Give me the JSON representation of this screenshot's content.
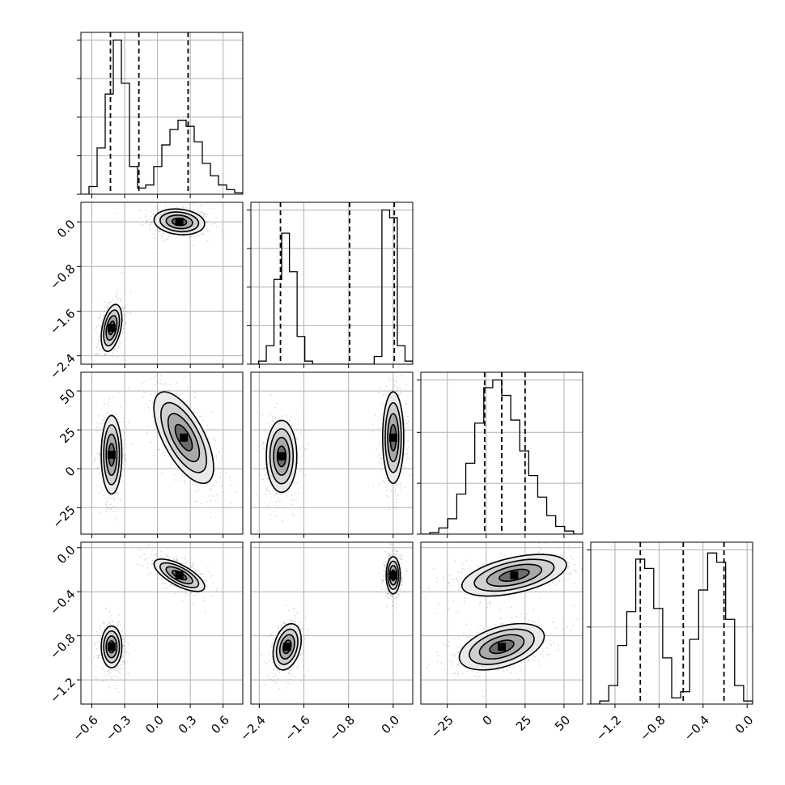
{
  "chart_data": {
    "type": "corner",
    "parameters": [
      {
        "index": 0,
        "range": [
          -0.7,
          0.78
        ],
        "ticks": [
          -0.6,
          -0.3,
          0.0,
          0.3,
          0.6
        ],
        "tick_labels": [
          "−0.6",
          "−0.3",
          "0.0",
          "0.3",
          "0.6"
        ]
      },
      {
        "index": 1,
        "range": [
          -2.55,
          0.35
        ],
        "ticks": [
          -2.4,
          -1.6,
          -0.8,
          0.0
        ],
        "tick_labels": [
          "−2.4",
          "−1.6",
          "−0.8",
          "0.0"
        ]
      },
      {
        "index": 2,
        "range": [
          -42,
          62
        ],
        "ticks": [
          -25,
          0,
          25,
          50
        ],
        "tick_labels": [
          "−25",
          "0",
          "25",
          "50"
        ]
      },
      {
        "index": 3,
        "range": [
          -1.42,
          0.05
        ],
        "ticks": [
          -1.2,
          -0.8,
          -0.4,
          0.0
        ],
        "tick_labels": [
          "−1.2",
          "−0.8",
          "−0.4",
          "0.0"
        ]
      }
    ],
    "histograms": [
      {
        "param": 0,
        "bin_edges": [
          -0.7,
          0.78
        ],
        "counts": [
          0,
          0.05,
          0.3,
          0.65,
          1.0,
          0.72,
          0.18,
          0.04,
          0.06,
          0.18,
          0.32,
          0.42,
          0.48,
          0.44,
          0.34,
          0.2,
          0.12,
          0.06,
          0.03,
          0.01
        ],
        "y_ticks": [
          0,
          0.25,
          0.5,
          0.75,
          1.0
        ],
        "quantiles": [
          -0.43,
          -0.17,
          0.28
        ]
      },
      {
        "param": 1,
        "bin_edges": [
          -2.55,
          0.35
        ],
        "counts": [
          0,
          0.02,
          0.12,
          0.55,
          0.85,
          0.6,
          0.18,
          0.02,
          0,
          0,
          0,
          0,
          0,
          0,
          0,
          0,
          0.05,
          1.0,
          0.95,
          0.12,
          0.02
        ],
        "y_ticks": [
          0,
          0.25,
          0.5,
          0.75,
          1.0
        ],
        "quantiles": [
          -2.02,
          -0.78,
          0.02
        ]
      },
      {
        "param": 2,
        "bin_edges": [
          -42,
          62
        ],
        "counts": [
          0,
          0.01,
          0.04,
          0.1,
          0.26,
          0.46,
          0.72,
          0.95,
          1.0,
          0.9,
          0.74,
          0.54,
          0.38,
          0.24,
          0.12,
          0.05,
          0.02,
          0
        ],
        "y_ticks": [
          0,
          0.33,
          0.66,
          1.0
        ],
        "quantiles": [
          -1,
          10,
          25
        ]
      },
      {
        "param": 3,
        "bin_edges": [
          -1.42,
          0.05
        ],
        "counts": [
          0,
          0.02,
          0.12,
          0.38,
          0.6,
          0.94,
          0.88,
          0.62,
          0.3,
          0.04,
          0.08,
          0.42,
          0.74,
          0.98,
          0.92,
          0.55,
          0.12,
          0.02
        ],
        "y_ticks": [
          0,
          0.5,
          1.0
        ],
        "quantiles": [
          -0.97,
          -0.58,
          -0.21
        ]
      }
    ],
    "pairs": [
      {
        "x": 0,
        "y": 1,
        "modes": [
          {
            "cx": 0.2,
            "cy": 0.0,
            "sx": 0.11,
            "sy": 0.11,
            "rho": -0.15
          },
          {
            "cx": -0.42,
            "cy": -1.9,
            "sx": 0.045,
            "sy": 0.2,
            "rho": 0.4
          }
        ]
      },
      {
        "x": 0,
        "y": 2,
        "modes": [
          {
            "cx": -0.42,
            "cy": 9,
            "sx": 0.045,
            "sy": 12,
            "rho": 0.0
          },
          {
            "cx": 0.24,
            "cy": 20,
            "sx": 0.13,
            "sy": 14,
            "rho": -0.65
          }
        ]
      },
      {
        "x": 1,
        "y": 2,
        "modes": [
          {
            "cx": -2.0,
            "cy": 8,
            "sx": 0.13,
            "sy": 11,
            "rho": 0.0
          },
          {
            "cx": 0.0,
            "cy": 20,
            "sx": 0.09,
            "sy": 14,
            "rho": 0.0
          }
        ]
      },
      {
        "x": 0,
        "y": 3,
        "modes": [
          {
            "cx": 0.2,
            "cy": -0.25,
            "sx": 0.11,
            "sy": 0.07,
            "rho": -0.7
          },
          {
            "cx": -0.42,
            "cy": -0.9,
            "sx": 0.045,
            "sy": 0.09,
            "rho": 0.0
          }
        ]
      },
      {
        "x": 1,
        "y": 3,
        "modes": [
          {
            "cx": 0.0,
            "cy": -0.25,
            "sx": 0.06,
            "sy": 0.08,
            "rho": 0.0
          },
          {
            "cx": -1.9,
            "cy": -0.9,
            "sx": 0.12,
            "sy": 0.1,
            "rho": 0.3
          }
        ]
      },
      {
        "x": 2,
        "y": 3,
        "modes": [
          {
            "cx": 18,
            "cy": -0.25,
            "sx": 16,
            "sy": 0.09,
            "rho": 0.5
          },
          {
            "cx": 10,
            "cy": -0.9,
            "sx": 13,
            "sy": 0.1,
            "rho": 0.45
          }
        ]
      }
    ],
    "contour_levels": [
      0.6,
      1.1,
      1.6,
      2.1
    ],
    "grid": true,
    "colors": {
      "points": "#9a9a9a",
      "contour": "#000000",
      "grid": "#b0b0b0"
    }
  }
}
